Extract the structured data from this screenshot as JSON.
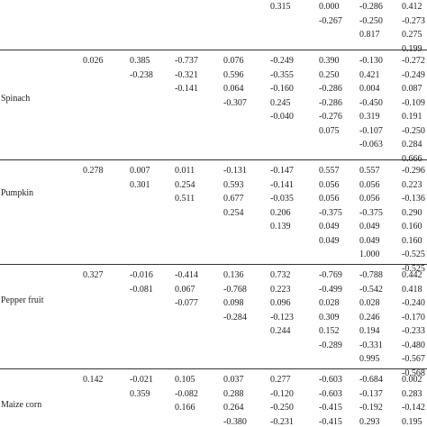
{
  "top": {
    "c4": [
      "0.315"
    ],
    "c5": [
      "0.000",
      "-0.267"
    ],
    "c6": [
      "-0.286",
      "-0.250",
      "0.817"
    ],
    "c7": [
      "0.412",
      "-0.273",
      "0.275",
      "0.199"
    ]
  },
  "groups": [
    {
      "label": "Spinach",
      "c0": [
        "0.026"
      ],
      "c1": [
        "0.385",
        "-0.238"
      ],
      "c2": [
        "-0.737",
        "-0.321",
        "-0.141"
      ],
      "c3": [
        "0.076",
        "0.596",
        "0.064",
        "-0.307"
      ],
      "c4": [
        "-0.249",
        "-0.355",
        "-0.160",
        "0.245",
        "-0.040"
      ],
      "c5": [
        "0.390",
        "0.250",
        "-0.286",
        "-0.286",
        "-0.276",
        "0.075"
      ],
      "c6": [
        "-0.130",
        "0.421",
        "0.004",
        "-0.450",
        "0.319",
        "-0.107",
        "-0.063"
      ],
      "c7": [
        "-0.272",
        "-0.249",
        "0.087",
        "-0.109",
        "0.191",
        "-0.250",
        "0.284",
        "0.666"
      ]
    },
    {
      "label": "Pumpkin",
      "c0": [
        "0.278"
      ],
      "c1": [
        "0.007",
        "0.301"
      ],
      "c2": [
        "0.011",
        "0.254",
        "0.511"
      ],
      "c3": [
        "-0.131",
        "0.593",
        "0.677",
        "0.254"
      ],
      "c4": [
        "-0.147",
        "-0.141",
        "-0.035",
        "0.206",
        "0.139"
      ],
      "c5": [
        "0.557",
        "0.056",
        "0.056",
        "-0.375",
        "0.049",
        "0.049"
      ],
      "c6": [
        "0.557",
        "0.056",
        "0.056",
        "-0.375",
        "0.049",
        "0.049",
        "1.000"
      ],
      "c7": [
        "-0.296",
        "0.223",
        "-0.136",
        "0.290",
        "0.160",
        "0.160",
        "-0.525",
        "-0.525"
      ]
    },
    {
      "label": "Pepper fruit",
      "c0": [
        "0.327"
      ],
      "c1": [
        "-0.016",
        "-0.081"
      ],
      "c2": [
        "-0.414",
        "0.067",
        "-0.077"
      ],
      "c3": [
        "0.136",
        "-0.768",
        "0.098",
        "-0.284"
      ],
      "c4": [
        "0.732",
        "0.223",
        "0.096",
        "-0.123",
        "0.244"
      ],
      "c5": [
        "-0.769",
        "-0.499",
        "0.028",
        "0.309",
        "0.152",
        "-0.289"
      ],
      "c6": [
        "-0.788",
        "-0.542",
        "0.028",
        "0.246",
        "0.194",
        "-0.331",
        "0.995"
      ],
      "c7": [
        "0.442",
        "0.418",
        "-0.240",
        "-0.170",
        "-0.233",
        "-0.480",
        "-0.567",
        "-0.568"
      ]
    },
    {
      "label": "Maize corn",
      "c0": [
        "0.142"
      ],
      "c1": [
        "-0.021",
        "0.359"
      ],
      "c2": [
        "0.105",
        "-0.082",
        "0.166"
      ],
      "c3": [
        "0.037",
        "0.288",
        "0.264",
        "-0.380"
      ],
      "c4": [
        "0.277",
        "-0.120",
        "-0.250",
        "-0.231"
      ],
      "c5": [
        "-0.603",
        "-0.603",
        "-0.415",
        "-0.415"
      ],
      "c6": [
        "-0.684",
        "-0.137",
        "-0.192",
        "0.293"
      ],
      "c7": [
        "0.002",
        "0.283",
        "-0.142",
        "0.195"
      ]
    }
  ]
}
